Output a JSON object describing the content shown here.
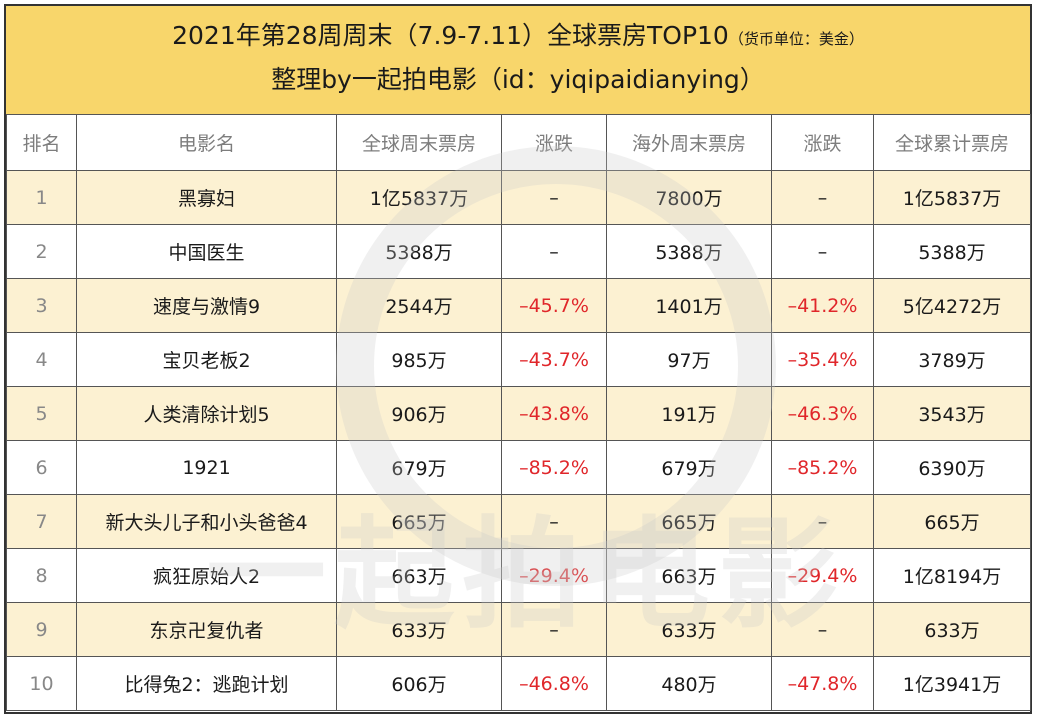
{
  "header": {
    "title": "2021年第28周周末（7.9-7.11）全球票房TOP10",
    "title_note": "（货币单位：美金）",
    "subtitle": "整理by一起拍电影（id：yiqipaidianying）"
  },
  "watermark": {
    "text": "一起拍电影"
  },
  "columns": [
    "排名",
    "电影名",
    "全球周末票房",
    "涨跌",
    "海外周末票房",
    "涨跌",
    "全球累计票房"
  ],
  "rows": [
    {
      "rank": "1",
      "title": "黑寡妇",
      "global_weekend": "1亿5837万",
      "global_change": "–",
      "overseas_weekend": "7800万",
      "overseas_change": "–",
      "cumulative": "1亿5837万"
    },
    {
      "rank": "2",
      "title": "中国医生",
      "global_weekend": "5388万",
      "global_change": "–",
      "overseas_weekend": "5388万",
      "overseas_change": "–",
      "cumulative": "5388万"
    },
    {
      "rank": "3",
      "title": "速度与激情9",
      "global_weekend": "2544万",
      "global_change": "–45.7%",
      "overseas_weekend": "1401万",
      "overseas_change": "–41.2%",
      "cumulative": "5亿4272万"
    },
    {
      "rank": "4",
      "title": "宝贝老板2",
      "global_weekend": "985万",
      "global_change": "–43.7%",
      "overseas_weekend": "97万",
      "overseas_change": "–35.4%",
      "cumulative": "3789万"
    },
    {
      "rank": "5",
      "title": "人类清除计划5",
      "global_weekend": "906万",
      "global_change": "–43.8%",
      "overseas_weekend": "191万",
      "overseas_change": "–46.3%",
      "cumulative": "3543万"
    },
    {
      "rank": "6",
      "title": "1921",
      "global_weekend": "679万",
      "global_change": "–85.2%",
      "overseas_weekend": "679万",
      "overseas_change": "–85.2%",
      "cumulative": "6390万"
    },
    {
      "rank": "7",
      "title": "新大头儿子和小头爸爸4",
      "global_weekend": "665万",
      "global_change": "–",
      "overseas_weekend": "665万",
      "overseas_change": "–",
      "cumulative": "665万"
    },
    {
      "rank": "8",
      "title": "疯狂原始人2",
      "global_weekend": "663万",
      "global_change": "–29.4%",
      "overseas_weekend": "663万",
      "overseas_change": "–29.4%",
      "cumulative": "1亿8194万"
    },
    {
      "rank": "9",
      "title": "东京卍复仇者",
      "global_weekend": "633万",
      "global_change": "–",
      "overseas_weekend": "633万",
      "overseas_change": "–",
      "cumulative": "633万"
    },
    {
      "rank": "10",
      "title": "比得兔2：逃跑计划",
      "global_weekend": "606万",
      "global_change": "–46.8%",
      "overseas_weekend": "480万",
      "overseas_change": "–47.8%",
      "cumulative": "1亿3941万"
    }
  ],
  "colors": {
    "header_bg": "#f8d66b",
    "alt_row_bg": "#fcf1d2",
    "negative": "#e0262a",
    "header_text": "#7d7d7d"
  }
}
